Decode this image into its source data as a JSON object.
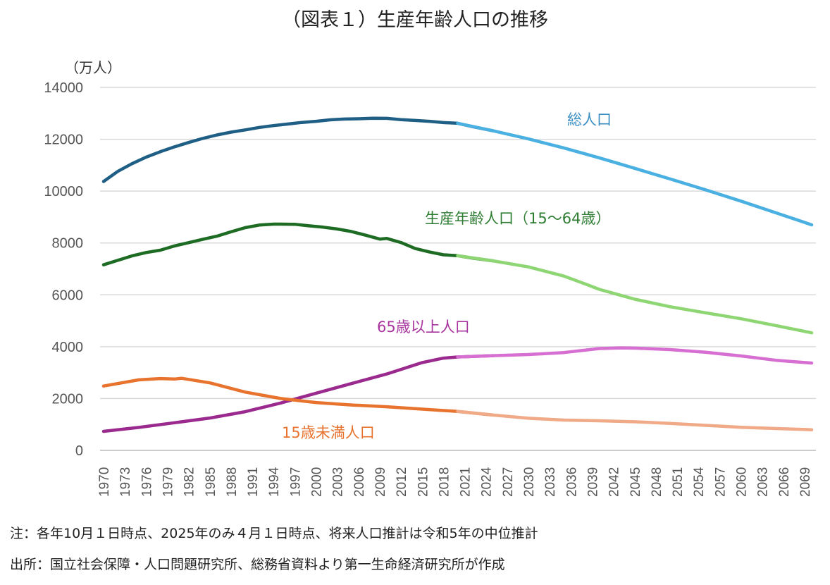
{
  "chart_data": {
    "type": "line",
    "title": "（図表１）生産年齢人口の推移",
    "ylabel": "（万人）",
    "xlabel": "",
    "ylim": [
      0,
      14000
    ],
    "yticks": [
      0,
      2000,
      4000,
      6000,
      8000,
      10000,
      12000,
      14000
    ],
    "xlim": [
      1970,
      2070
    ],
    "xtick_step": 3,
    "grid": "horizontal",
    "legend": "inline labels",
    "series": [
      {
        "name": "総人口",
        "color_actual": "#1f5f86",
        "color_projection": "#4ab0e2",
        "label_color": "#3b8fc2",
        "actual": {
          "x": [
            1970,
            1972,
            1974,
            1976,
            1978,
            1980,
            1982,
            1984,
            1986,
            1988,
            1990,
            1992,
            1994,
            1996,
            1998,
            2000,
            2002,
            2004,
            2006,
            2008,
            2010,
            2012,
            2014,
            2016,
            2018,
            2020,
            2022,
            2025
          ],
          "y": [
            10372,
            10760,
            11057,
            11309,
            11519,
            11706,
            11873,
            12031,
            12166,
            12275,
            12361,
            12457,
            12527,
            12586,
            12649,
            12693,
            12749,
            12779,
            12790,
            12808,
            12806,
            12759,
            12724,
            12693,
            12644,
            12615,
            12495,
            12326
          ]
        },
        "projection": {
          "x": [
            2020,
            2025,
            2030,
            2035,
            2040,
            2045,
            2050,
            2055,
            2060,
            2065,
            2070
          ],
          "y": [
            12615,
            12326,
            12012,
            11664,
            11284,
            10880,
            10469,
            10051,
            9615,
            9159,
            8700
          ]
        }
      },
      {
        "name": "生産年齢人口（15〜64歳）",
        "color_actual": "#1e6b24",
        "color_projection": "#8ed673",
        "label_color": "#2e7d32",
        "actual": {
          "x": [
            1970,
            1972,
            1974,
            1976,
            1978,
            1980,
            1982,
            1984,
            1986,
            1988,
            1990,
            1992,
            1994,
            1995,
            1997,
            1999,
            2001,
            2003,
            2005,
            2007,
            2009,
            2010,
            2012,
            2014,
            2016,
            2018,
            2020,
            2022,
            2025
          ],
          "y": [
            7157,
            7330,
            7500,
            7630,
            7720,
            7883,
            8010,
            8140,
            8260,
            8430,
            8590,
            8690,
            8726,
            8726,
            8720,
            8660,
            8610,
            8540,
            8440,
            8300,
            8150,
            8174,
            8018,
            7785,
            7656,
            7545,
            7509,
            7421,
            7310
          ]
        },
        "projection": {
          "x": [
            2020,
            2025,
            2030,
            2035,
            2038,
            2040,
            2045,
            2050,
            2055,
            2060,
            2065,
            2070
          ],
          "y": [
            7509,
            7310,
            7076,
            6722,
            6420,
            6213,
            5832,
            5540,
            5307,
            5078,
            4809,
            4535
          ]
        }
      },
      {
        "name": "65歳以上人口",
        "color_actual": "#9b2a8f",
        "color_projection": "#d66fd1",
        "label_color": "#a9359f",
        "actual": {
          "x": [
            1970,
            1975,
            1980,
            1985,
            1990,
            1995,
            2000,
            2005,
            2010,
            2015,
            2018,
            2020,
            2022,
            2025
          ],
          "y": [
            733,
            887,
            1065,
            1247,
            1493,
            1826,
            2204,
            2576,
            2948,
            3387,
            3558,
            3603,
            3624,
            3653
          ]
        },
        "projection": {
          "x": [
            2020,
            2025,
            2030,
            2035,
            2040,
            2043,
            2045,
            2050,
            2055,
            2060,
            2065,
            2070
          ],
          "y": [
            3603,
            3653,
            3696,
            3773,
            3929,
            3953,
            3945,
            3888,
            3784,
            3644,
            3475,
            3367
          ]
        }
      },
      {
        "name": "15歳未満人口",
        "color_actual": "#e8732e",
        "color_projection": "#f0aa88",
        "label_color": "#e8732e",
        "actual": {
          "x": [
            1970,
            1975,
            1978,
            1980,
            1981,
            1985,
            1990,
            1995,
            2000,
            2005,
            2010,
            2015,
            2020,
            2025
          ],
          "y": [
            2482,
            2722,
            2770,
            2751,
            2780,
            2603,
            2249,
            2001,
            1847,
            1752,
            1684,
            1589,
            1503,
            1363
          ]
        },
        "projection": {
          "x": [
            2020,
            2025,
            2030,
            2035,
            2040,
            2045,
            2050,
            2055,
            2060,
            2065,
            2070
          ],
          "y": [
            1503,
            1363,
            1240,
            1169,
            1142,
            1103,
            1041,
            966,
            893,
            842,
            797
          ]
        }
      }
    ]
  },
  "notes": {
    "note1": "注：各年10月１日時点、2025年のみ４月１日時点、将来人口推計は令和5年の中位推計",
    "note2": "出所：国立社会保障・人口問題研究所、総務省資料より第一生命経済研究所が作成"
  }
}
